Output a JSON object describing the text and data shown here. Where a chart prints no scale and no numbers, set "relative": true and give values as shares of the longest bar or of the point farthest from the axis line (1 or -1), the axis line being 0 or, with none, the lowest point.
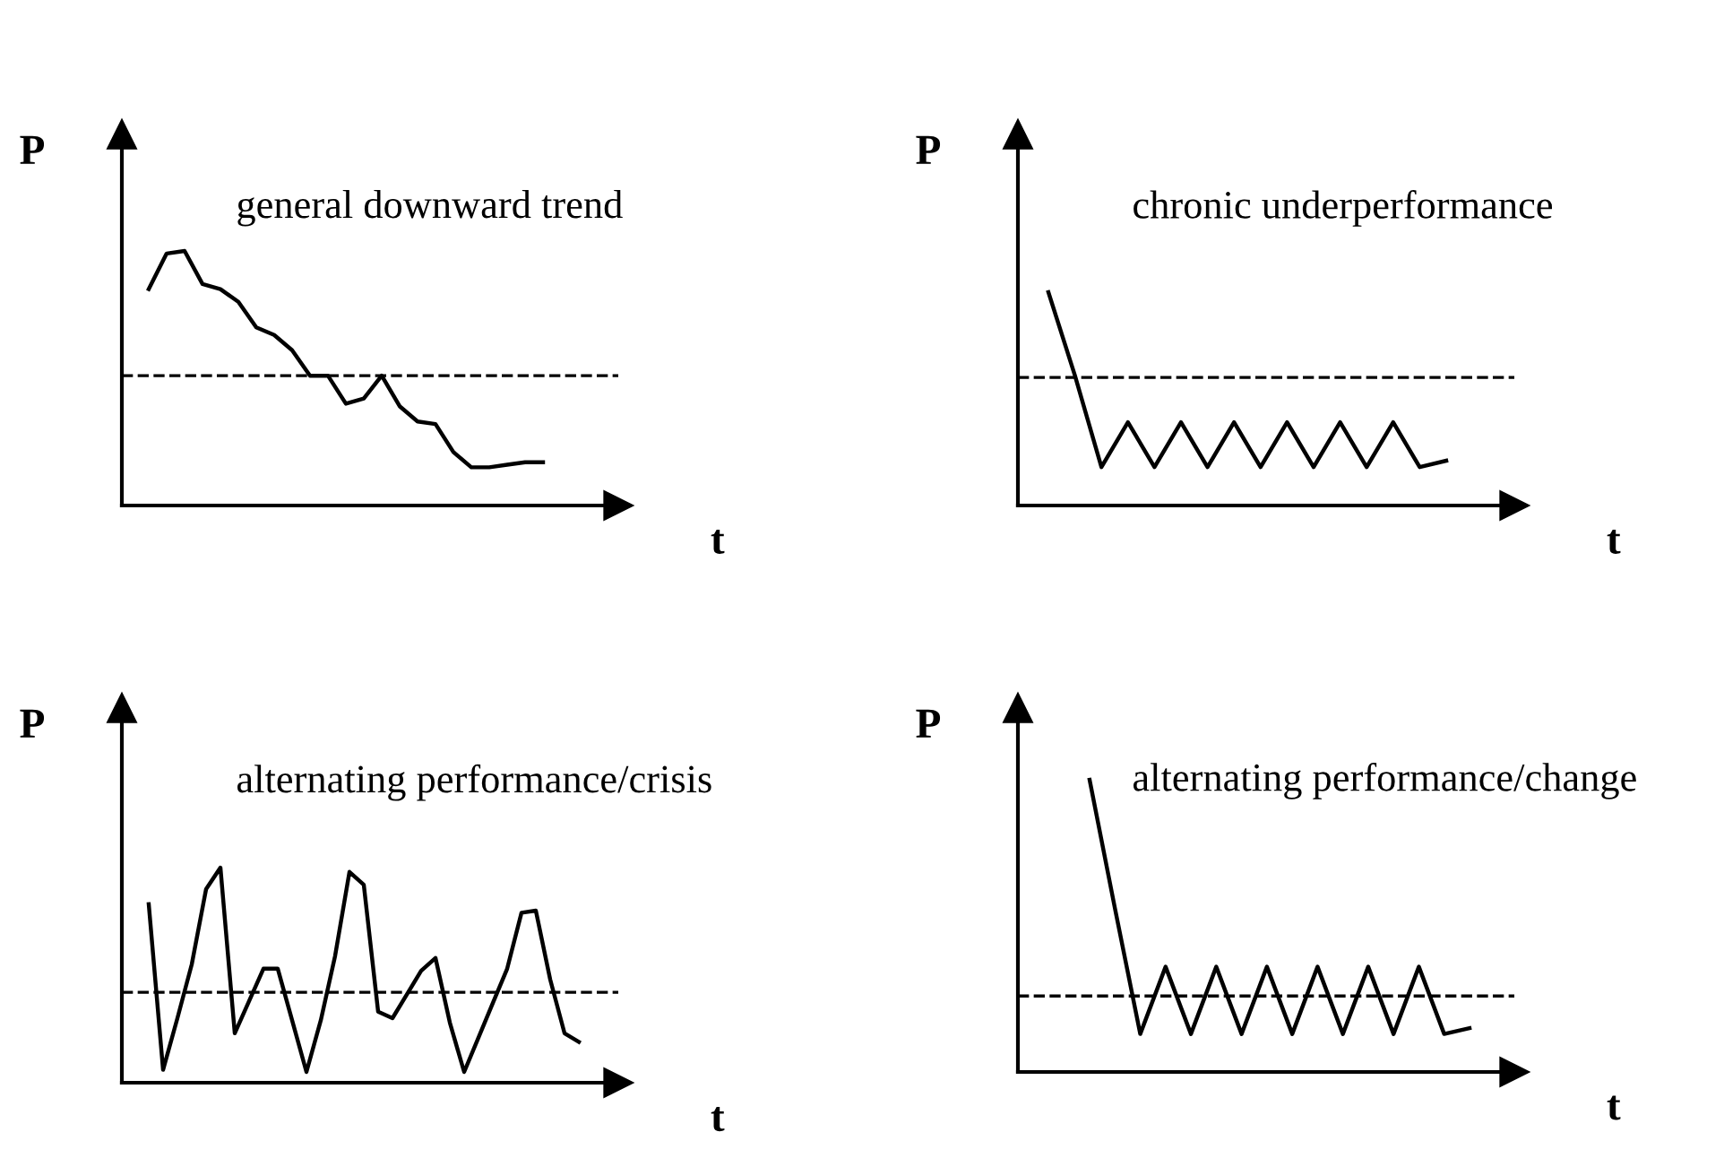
{
  "chart_data": [
    {
      "type": "line",
      "title": "general downward trend",
      "xlabel": "t",
      "ylabel": "P",
      "relative": true,
      "line_style": "solid",
      "categories": [
        null,
        null,
        null,
        null,
        null,
        null,
        null,
        null,
        null,
        null,
        null,
        null,
        null,
        null,
        null,
        null,
        null,
        null,
        null,
        null,
        null,
        null,
        null
      ],
      "series": [
        {
          "color": "#000000",
          "values": [
            0.85,
            0.99,
            1.0,
            0.87,
            0.85,
            0.8,
            0.7,
            0.67,
            0.61,
            0.51,
            0.51,
            0.4,
            0.42,
            0.51,
            0.39,
            0.33,
            0.32,
            0.21,
            0.15,
            0.15,
            0.16,
            0.17,
            0.17
          ]
        }
      ],
      "ref_lines": [
        {
          "axis": "y",
          "value": 0.51,
          "color": "#000000",
          "line_style": "dashed"
        }
      ]
    },
    {
      "type": "line",
      "title": "chronic underperformance",
      "xlabel": "t",
      "ylabel": "P",
      "relative": true,
      "line_style": "solid",
      "categories": [
        null,
        null,
        null,
        null,
        null,
        null,
        null,
        null,
        null,
        null,
        null,
        null,
        null,
        null,
        null,
        null
      ],
      "series": [
        {
          "color": "#000000",
          "values": [
            1.0,
            0.61,
            0.18,
            0.39,
            0.18,
            0.39,
            0.18,
            0.39,
            0.18,
            0.39,
            0.18,
            0.39,
            0.18,
            0.39,
            0.18,
            0.21
          ]
        }
      ],
      "ref_lines": [
        {
          "axis": "y",
          "value": 0.6,
          "color": "#000000",
          "line_style": "dashed"
        }
      ]
    },
    {
      "type": "line",
      "title": "alternating performance/crisis",
      "xlabel": "t",
      "ylabel": "P",
      "relative": true,
      "line_style": "solid",
      "categories": [
        null,
        null,
        null,
        null,
        null,
        null,
        null,
        null,
        null,
        null,
        null,
        null,
        null,
        null,
        null,
        null,
        null,
        null,
        null,
        null,
        null,
        null,
        null,
        null,
        null,
        null,
        null,
        null,
        null,
        null,
        null
      ],
      "series": [
        {
          "color": "#000000",
          "values": [
            0.83,
            0.06,
            0.3,
            0.55,
            0.9,
            1.0,
            0.23,
            0.38,
            0.53,
            0.53,
            0.29,
            0.05,
            0.29,
            0.59,
            0.98,
            0.92,
            0.33,
            0.3,
            0.41,
            0.52,
            0.58,
            0.28,
            0.05,
            0.21,
            0.37,
            0.53,
            0.79,
            0.8,
            0.48,
            0.23,
            0.19
          ]
        }
      ],
      "ref_lines": [
        {
          "axis": "y",
          "value": 0.42,
          "color": "#000000",
          "line_style": "dashed"
        }
      ]
    },
    {
      "type": "line",
      "title": "alternating performance/change",
      "xlabel": "t",
      "ylabel": "P",
      "relative": true,
      "line_style": "solid",
      "categories": [
        null,
        null,
        null,
        null,
        null,
        null,
        null,
        null,
        null,
        null,
        null,
        null,
        null,
        null,
        null,
        null
      ],
      "series": [
        {
          "color": "#000000",
          "values": [
            1.0,
            0.56,
            0.13,
            0.36,
            0.13,
            0.36,
            0.13,
            0.36,
            0.13,
            0.36,
            0.13,
            0.36,
            0.13,
            0.36,
            0.13,
            0.15
          ]
        }
      ],
      "ref_lines": [
        {
          "axis": "y",
          "value": 0.26,
          "color": "#000000",
          "line_style": "dashed"
        }
      ]
    }
  ]
}
